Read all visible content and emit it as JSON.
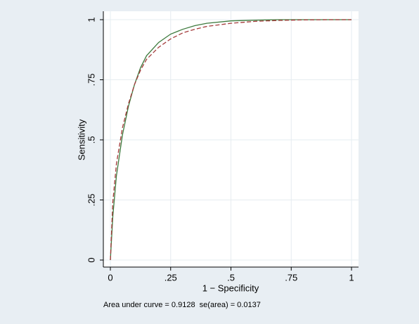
{
  "chart_data": {
    "type": "line",
    "xlabel": "1 − Specificity",
    "ylabel": "Sensitivity",
    "note": "Area under curve = 0.9128  se(area) = 0.0137",
    "x": [
      0,
      0.01,
      0.025,
      0.05,
      0.075,
      0.1,
      0.125,
      0.15,
      0.2,
      0.25,
      0.3,
      0.35,
      0.4,
      0.5,
      0.6,
      0.7,
      0.8,
      0.9,
      1
    ],
    "series": [
      {
        "color": "#3d7a3d",
        "dash": false,
        "values": [
          0,
          0.18,
          0.35,
          0.52,
          0.64,
          0.73,
          0.8,
          0.85,
          0.905,
          0.94,
          0.96,
          0.975,
          0.985,
          0.995,
          0.998,
          1,
          1,
          1,
          1
        ]
      },
      {
        "color": "#a33a3a",
        "dash": true,
        "values": [
          0,
          0.24,
          0.4,
          0.55,
          0.65,
          0.73,
          0.79,
          0.835,
          0.885,
          0.92,
          0.945,
          0.96,
          0.972,
          0.985,
          0.993,
          0.997,
          0.999,
          1,
          1
        ]
      }
    ],
    "xlim": [
      0,
      1
    ],
    "ylim": [
      0,
      1
    ],
    "xticks": [
      0,
      {
        "value": 0.25,
        "label": ".25"
      },
      {
        "value": 0.5,
        "label": ".5"
      },
      {
        "value": 0.75,
        "label": ".75"
      },
      1
    ],
    "yticks": [
      0,
      {
        "value": 0.25,
        "label": ".25"
      },
      {
        "value": 0.5,
        "label": ".5"
      },
      {
        "value": 0.75,
        "label": ".75"
      },
      1
    ],
    "grid": true
  }
}
